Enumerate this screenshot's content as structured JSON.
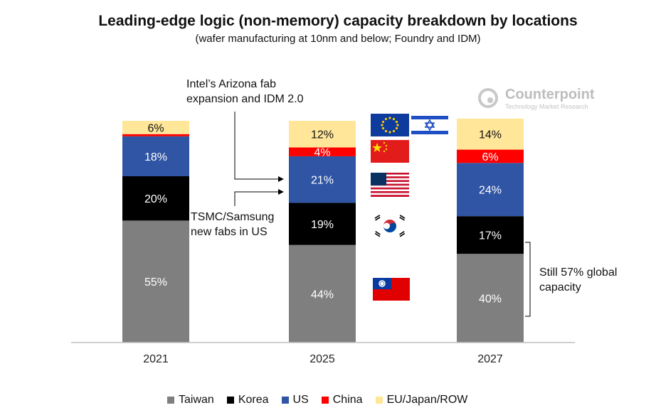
{
  "title": "Leading-edge logic (non-memory) capacity breakdown by locations",
  "subtitle": "(wafer manufacturing at 10nm and below; Foundry and IDM)",
  "logo": {
    "name": "Counterpoint",
    "tagline": "Technology Market Research"
  },
  "annotations": {
    "intel": "Intel’s Arizona fab expansion and IDM 2.0",
    "tsmc": "TSMC/Samsung new fabs in US",
    "still": "Still 57% global capacity"
  },
  "flags": [
    "eu-flag-icon",
    "israel-flag-icon",
    "china-flag-icon",
    "usa-flag-icon",
    "south-korea-flag-icon",
    "taiwan-flag-icon"
  ],
  "colors": {
    "Taiwan": "#7f7f7f",
    "Korea": "#000000",
    "US": "#2f55a4",
    "China": "#ff0000",
    "EU/Japan/ROW": "#ffe699"
  },
  "chart_data": {
    "type": "bar",
    "stacked": true,
    "categories": [
      "2021",
      "2025",
      "2027"
    ],
    "series": [
      {
        "name": "Taiwan",
        "values": [
          55,
          44,
          40
        ]
      },
      {
        "name": "Korea",
        "values": [
          20,
          19,
          17
        ]
      },
      {
        "name": "US",
        "values": [
          18,
          21,
          24
        ]
      },
      {
        "name": "China",
        "values": [
          1,
          4,
          6
        ]
      },
      {
        "name": "EU/Japan/ROW",
        "values": [
          6,
          12,
          14
        ]
      }
    ],
    "data_labels": [
      [
        "55%",
        "20%",
        "18%",
        "",
        "6%"
      ],
      [
        "44%",
        "19%",
        "21%",
        "4%",
        "12%"
      ],
      [
        "40%",
        "17%",
        "24%",
        "6%",
        "14%"
      ]
    ],
    "ylim": [
      0,
      100
    ],
    "legend_position": "bottom"
  }
}
